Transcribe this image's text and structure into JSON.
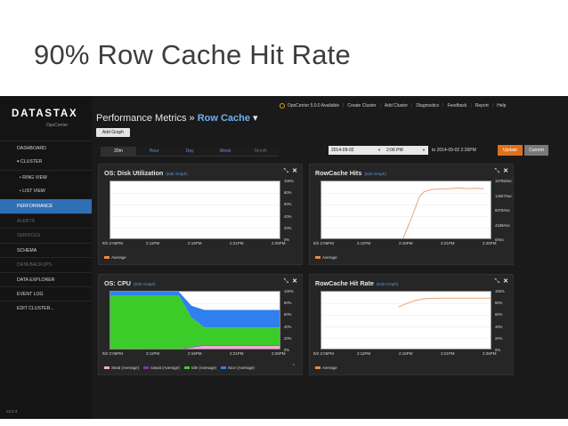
{
  "slide": {
    "title": "90% Row Cache Hit Rate"
  },
  "brand": {
    "logo": "DATASTAX",
    "product": "OpsCenter"
  },
  "sidebar": {
    "items": [
      {
        "label": "DASHBOARD",
        "state": "normal"
      },
      {
        "label": "▾ CLUSTER",
        "state": "normal"
      },
      {
        "label": "• RING VIEW",
        "state": "normal"
      },
      {
        "label": "• LIST VIEW",
        "state": "normal"
      },
      {
        "label": "PERFORMANCE",
        "state": "active"
      },
      {
        "label": "ALERTS",
        "state": "dim"
      },
      {
        "label": "SERVICES",
        "state": "dim"
      },
      {
        "label": "SCHEMA",
        "state": "normal"
      },
      {
        "label": "DATA BACKUPS",
        "state": "dim"
      },
      {
        "label": "DATA EXPLORER",
        "state": "normal"
      },
      {
        "label": "EVENT LOG",
        "state": "normal"
      },
      {
        "label": "EDIT CLUSTER...",
        "state": "normal"
      }
    ],
    "version": "v4.0.3"
  },
  "topbar": {
    "status": "OpsCenter 5.0.0 Available",
    "links": [
      "Create Cluster",
      "Add Cluster",
      "Diagnostics",
      "Feedback",
      "Report",
      "Help"
    ]
  },
  "page": {
    "heading_prefix": "Performance Metrics » ",
    "heading_section": "Row Cache",
    "heading_caret": " ▾",
    "add_graph": "Add Graph"
  },
  "time": {
    "ranges": [
      "20m",
      "Hour",
      "Day",
      "Week",
      "Month"
    ],
    "selected_range": "20m",
    "start_date": "2014-09-02",
    "start_time": "2:06 PM",
    "to_label": "to",
    "end": "2014-09-02 2:26PM",
    "update": "Update",
    "current": "Current"
  },
  "colors": {
    "line": "#e9a27a",
    "average": "#f0883a",
    "steal": "#f4a9d8",
    "iowait": "#7a3aa0",
    "idle": "#3ccc2a",
    "nice": "#2f7ff0"
  },
  "panels": {
    "disk": {
      "title": "OS: Disk Utilization",
      "edit": "(Edit Graph)",
      "yticks": [
        "100%",
        "80%",
        "60%",
        "40%",
        "20%",
        "0%"
      ],
      "xticks": [
        "9/2 2:06PM",
        "2:11PM",
        "2:16PM",
        "2:21PM",
        "2:26PM"
      ],
      "legend": [
        {
          "label": "Average",
          "color": "average"
        }
      ]
    },
    "hits": {
      "title": "RowCache Hits",
      "edit": "(Edit Graph)",
      "yticks": [
        "16755/sec",
        "12567/sec",
        "8378/sec",
        "4189/sec",
        "0/sec"
      ],
      "xticks": [
        "9/2 2:06PM",
        "2:11PM",
        "2:16PM",
        "2:21PM",
        "2:26PM"
      ],
      "legend": [
        {
          "label": "Average",
          "color": "average"
        }
      ]
    },
    "cpu": {
      "title": "OS: CPU",
      "edit": "(Edit Graph)",
      "yticks": [
        "100%",
        "80%",
        "60%",
        "40%",
        "20%",
        "0%"
      ],
      "xticks": [
        "9/2 2:06PM",
        "2:11PM",
        "2:16PM",
        "2:21PM",
        "2:26PM"
      ],
      "legend": [
        {
          "label": "Steal (Average)",
          "color": "steal"
        },
        {
          "label": "Iowait (Average)",
          "color": "iowait"
        },
        {
          "label": "Idle (Average)",
          "color": "idle"
        },
        {
          "label": "Nice (Average)",
          "color": "nice"
        }
      ]
    },
    "rate": {
      "title": "RowCache Hit Rate",
      "edit": "(Edit Graph)",
      "yticks": [
        "100%",
        "80%",
        "60%",
        "40%",
        "20%",
        "0%"
      ],
      "xticks": [
        "9/2 2:06PM",
        "2:11PM",
        "2:16PM",
        "2:21PM",
        "2:26PM"
      ],
      "legend": [
        {
          "label": "Average",
          "color": "average"
        }
      ]
    }
  },
  "chart_data": [
    {
      "type": "line",
      "title": "OS: Disk Utilization",
      "ylim": [
        0,
        100
      ],
      "x": [
        0,
        2,
        4,
        6,
        8,
        10,
        12,
        14,
        16,
        18,
        20
      ],
      "series": [
        {
          "name": "Average",
          "values": [
            0.5,
            0.6,
            0.6,
            0.7,
            0.8,
            0.9,
            0.9,
            1,
            1,
            1,
            1
          ]
        }
      ]
    },
    {
      "type": "line",
      "title": "RowCache Hits",
      "ylim": [
        0,
        16755
      ],
      "x": [
        0,
        4,
        8,
        9.5,
        10.5,
        11.5,
        12,
        13,
        14,
        15,
        16,
        17,
        18,
        19
      ],
      "series": [
        {
          "name": "Average",
          "values": [
            null,
            null,
            null,
            200,
            6000,
            12500,
            13800,
            14500,
            14600,
            14700,
            14900,
            14700,
            14800,
            14700
          ]
        }
      ]
    },
    {
      "type": "area",
      "title": "OS: CPU",
      "ylim": [
        0,
        100
      ],
      "x": [
        0,
        4,
        8,
        9.5,
        11,
        20
      ],
      "series": [
        {
          "name": "Steal (Average)",
          "values": [
            1,
            1,
            1,
            5,
            8,
            8
          ]
        },
        {
          "name": "Iowait (Average)",
          "values": [
            1,
            1,
            1,
            1,
            1,
            1
          ]
        },
        {
          "name": "Idle (Average)",
          "values": [
            92,
            92,
            92,
            50,
            30,
            30
          ]
        },
        {
          "name": "Nice (Average)",
          "values": [
            6,
            6,
            6,
            20,
            30,
            30
          ]
        }
      ]
    },
    {
      "type": "line",
      "title": "RowCache Hit Rate",
      "ylim": [
        0,
        100
      ],
      "x": [
        0,
        4,
        8,
        9,
        10,
        11,
        12,
        14,
        16,
        18,
        20
      ],
      "series": [
        {
          "name": "Average",
          "values": [
            null,
            null,
            null,
            74,
            80,
            85,
            88,
            89,
            89,
            89,
            89
          ]
        }
      ]
    }
  ]
}
